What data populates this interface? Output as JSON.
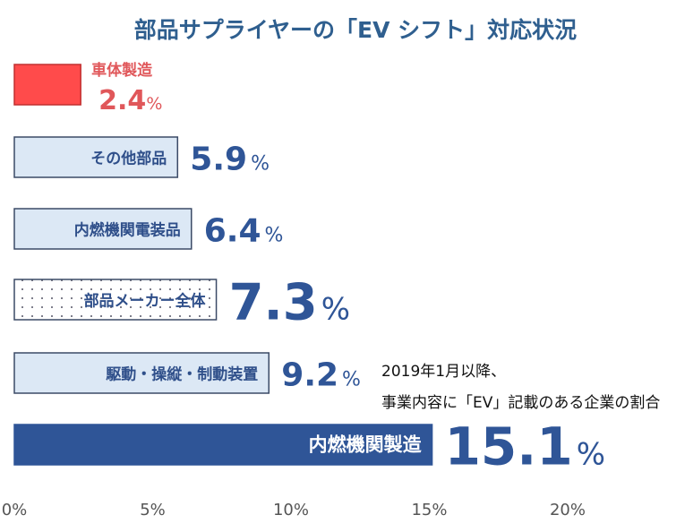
{
  "chart_data": {
    "type": "bar",
    "orientation": "horizontal",
    "title": "部品サプライヤーの「EV シフト」対応状況",
    "categories": [
      "車体製造",
      "その他部品",
      "内燃機関電装品",
      "部品メーカー全体",
      "駆動・操縦・制動装置",
      "内燃機関製造"
    ],
    "values": [
      2.4,
      5.9,
      6.4,
      7.3,
      9.2,
      15.1
    ],
    "unit": "%",
    "xlim": [
      0,
      20
    ],
    "xticks": [
      "0%",
      "5%",
      "10%",
      "15%",
      "20%"
    ],
    "annotation": [
      "2019年1月以降、",
      "事業内容に「EV」記載のある企業の割合"
    ],
    "grid": false,
    "colors": {
      "highlight_red": "#ff4b4b",
      "red_text": "#e0575a",
      "light_fill": "#dce8f5",
      "dark_fill": "#2f5597",
      "navy_text": "#2f4f8a",
      "border": "#3b4a66"
    }
  }
}
